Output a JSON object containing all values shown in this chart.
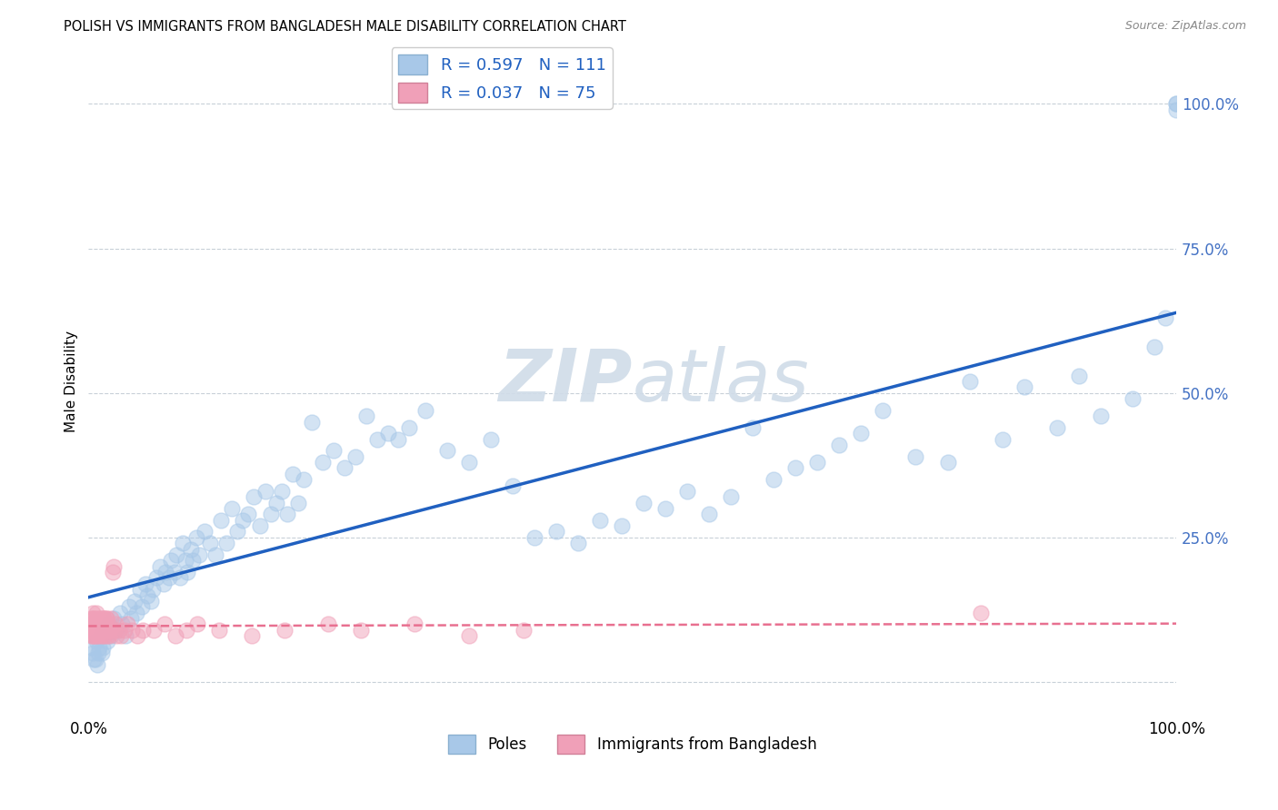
{
  "title": "POLISH VS IMMIGRANTS FROM BANGLADESH MALE DISABILITY CORRELATION CHART",
  "source": "Source: ZipAtlas.com",
  "ylabel": "Male Disability",
  "r_poles": 0.597,
  "n_poles": 111,
  "r_bangladesh": 0.037,
  "n_bangladesh": 75,
  "poles_color": "#a8c8e8",
  "bangladesh_color": "#f0a0b8",
  "trendline_poles_color": "#2060c0",
  "trendline_bangladesh_color": "#e87090",
  "watermark_color": "#d0dce8",
  "legend_label_poles": "Poles",
  "legend_label_bangladesh": "Immigrants from Bangladesh",
  "xlim": [
    0.0,
    1.0
  ],
  "ylim": [
    -0.06,
    1.1
  ],
  "yticks": [
    0.0,
    0.25,
    0.5,
    0.75,
    1.0
  ],
  "ytick_labels": [
    "",
    "25.0%",
    "50.0%",
    "75.0%",
    "100.0%"
  ],
  "xtick_positions": [
    0.0,
    0.25,
    0.5,
    0.75,
    1.0
  ],
  "xtick_labels": [
    "0.0%",
    "",
    "",
    "",
    "100.0%"
  ],
  "grid_color": "#c8d0d8",
  "background_color": "#ffffff",
  "poles_x": [
    0.003,
    0.005,
    0.007,
    0.009,
    0.011,
    0.013,
    0.015,
    0.017,
    0.019,
    0.021,
    0.023,
    0.026,
    0.029,
    0.031,
    0.034,
    0.037,
    0.039,
    0.042,
    0.044,
    0.047,
    0.049,
    0.052,
    0.054,
    0.057,
    0.059,
    0.062,
    0.066,
    0.069,
    0.071,
    0.074,
    0.076,
    0.079,
    0.081,
    0.084,
    0.087,
    0.089,
    0.091,
    0.094,
    0.096,
    0.099,
    0.102,
    0.107,
    0.112,
    0.117,
    0.122,
    0.127,
    0.132,
    0.137,
    0.142,
    0.147,
    0.152,
    0.158,
    0.163,
    0.168,
    0.173,
    0.178,
    0.183,
    0.188,
    0.193,
    0.198,
    0.205,
    0.215,
    0.225,
    0.235,
    0.245,
    0.255,
    0.265,
    0.275,
    0.285,
    0.295,
    0.31,
    0.33,
    0.35,
    0.37,
    0.39,
    0.41,
    0.43,
    0.45,
    0.47,
    0.49,
    0.51,
    0.53,
    0.55,
    0.57,
    0.59,
    0.61,
    0.63,
    0.65,
    0.67,
    0.69,
    0.71,
    0.73,
    0.76,
    0.79,
    0.81,
    0.84,
    0.86,
    0.89,
    0.91,
    0.93,
    0.96,
    0.98,
    0.99,
    1.0,
    1.0,
    1.0,
    0.004,
    0.006,
    0.008,
    0.01,
    0.012
  ],
  "poles_y": [
    0.06,
    0.04,
    0.07,
    0.05,
    0.08,
    0.06,
    0.09,
    0.07,
    0.1,
    0.08,
    0.11,
    0.09,
    0.12,
    0.1,
    0.08,
    0.13,
    0.11,
    0.14,
    0.12,
    0.16,
    0.13,
    0.17,
    0.15,
    0.14,
    0.16,
    0.18,
    0.2,
    0.17,
    0.19,
    0.18,
    0.21,
    0.19,
    0.22,
    0.18,
    0.24,
    0.21,
    0.19,
    0.23,
    0.21,
    0.25,
    0.22,
    0.26,
    0.24,
    0.22,
    0.28,
    0.24,
    0.3,
    0.26,
    0.28,
    0.29,
    0.32,
    0.27,
    0.33,
    0.29,
    0.31,
    0.33,
    0.29,
    0.36,
    0.31,
    0.35,
    0.45,
    0.38,
    0.4,
    0.37,
    0.39,
    0.46,
    0.42,
    0.43,
    0.42,
    0.44,
    0.47,
    0.4,
    0.38,
    0.42,
    0.34,
    0.25,
    0.26,
    0.24,
    0.28,
    0.27,
    0.31,
    0.3,
    0.33,
    0.29,
    0.32,
    0.44,
    0.35,
    0.37,
    0.38,
    0.41,
    0.43,
    0.47,
    0.39,
    0.38,
    0.52,
    0.42,
    0.51,
    0.44,
    0.53,
    0.46,
    0.49,
    0.58,
    0.63,
    1.0,
    1.0,
    0.99,
    0.05,
    0.04,
    0.03,
    0.06,
    0.05
  ],
  "bangladesh_x": [
    0.001,
    0.002,
    0.003,
    0.003,
    0.004,
    0.004,
    0.005,
    0.005,
    0.006,
    0.006,
    0.007,
    0.007,
    0.008,
    0.008,
    0.009,
    0.009,
    0.01,
    0.01,
    0.011,
    0.011,
    0.012,
    0.012,
    0.013,
    0.013,
    0.014,
    0.014,
    0.015,
    0.015,
    0.016,
    0.016,
    0.017,
    0.018,
    0.019,
    0.02,
    0.021,
    0.022,
    0.023,
    0.024,
    0.025,
    0.026,
    0.028,
    0.03,
    0.033,
    0.036,
    0.04,
    0.045,
    0.05,
    0.06,
    0.07,
    0.08,
    0.09,
    0.1,
    0.12,
    0.15,
    0.18,
    0.22,
    0.25,
    0.3,
    0.35,
    0.4,
    0.003,
    0.005,
    0.008,
    0.011,
    0.014,
    0.017,
    0.02,
    0.002,
    0.006,
    0.01,
    0.013,
    0.016,
    0.004,
    0.007,
    0.82
  ],
  "bangladesh_y": [
    0.09,
    0.11,
    0.1,
    0.08,
    0.12,
    0.09,
    0.08,
    0.11,
    0.1,
    0.09,
    0.12,
    0.08,
    0.11,
    0.09,
    0.1,
    0.08,
    0.09,
    0.11,
    0.1,
    0.08,
    0.09,
    0.11,
    0.1,
    0.08,
    0.09,
    0.11,
    0.1,
    0.08,
    0.09,
    0.11,
    0.09,
    0.1,
    0.08,
    0.09,
    0.11,
    0.19,
    0.2,
    0.09,
    0.1,
    0.08,
    0.09,
    0.08,
    0.09,
    0.1,
    0.09,
    0.08,
    0.09,
    0.09,
    0.1,
    0.08,
    0.09,
    0.1,
    0.09,
    0.08,
    0.09,
    0.1,
    0.09,
    0.1,
    0.08,
    0.09,
    0.08,
    0.11,
    0.09,
    0.1,
    0.11,
    0.08,
    0.09,
    0.1,
    0.08,
    0.09,
    0.1,
    0.11,
    0.09,
    0.1,
    0.12
  ]
}
